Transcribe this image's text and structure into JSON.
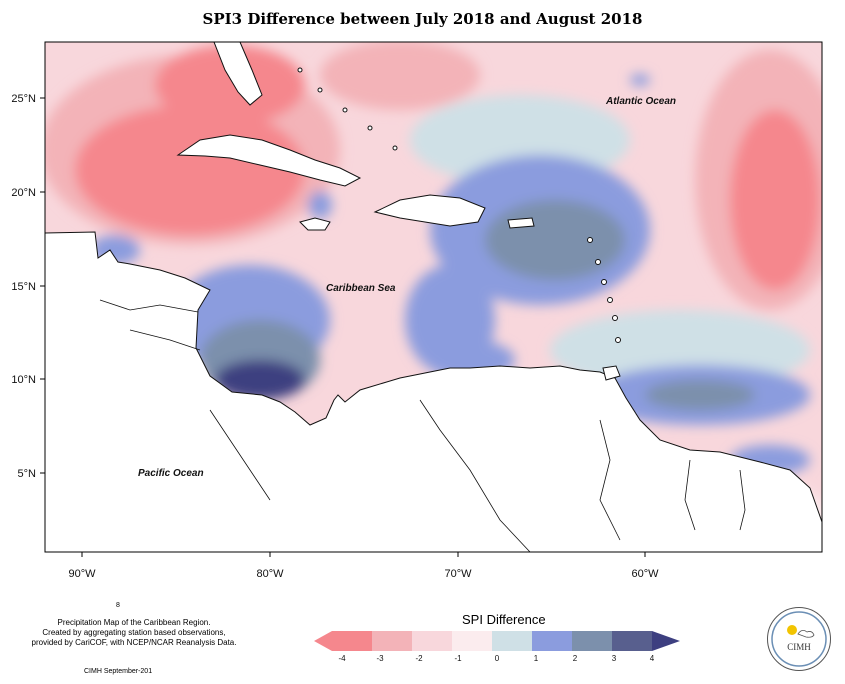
{
  "title": "SPI3 Difference between July 2018 and August 2018",
  "lat_labels": [
    "25°N",
    "20°N",
    "15°N",
    "10°N",
    "5°N"
  ],
  "lon_labels": [
    "90°W",
    "80°W",
    "70°W",
    "60°W"
  ],
  "ocean_labels": {
    "atlantic": "Atlantic Ocean",
    "caribbean": "Caribbean Sea",
    "pacific": "Pacific Ocean"
  },
  "footer": {
    "line1": "Precipitation Map of the Caribbean Region.",
    "line2": "Created by aggregating station based observations,",
    "line3": "provided by CariCOF, with NCEP/NCAR Reanalysis Data.",
    "date": "CIMH September-201",
    "digit": "8"
  },
  "legend": {
    "title": "SPI Difference",
    "ticks": [
      "-4",
      "-3",
      "-2",
      "-1",
      "0",
      "1",
      "2",
      "3",
      "4"
    ],
    "colors": [
      "#f5878d",
      "#f3b3b8",
      "#f8d7dc",
      "#fbecee",
      "#cfe0e6",
      "#8b9cde",
      "#7c90ac",
      "#585f8e",
      "#3d3f80"
    ]
  },
  "logo": {
    "text": "CIMH"
  },
  "palette": {
    "strong_dry": "#f5878d",
    "mod_dry": "#f3b3b8",
    "light_dry": "#f8d7dc",
    "very_light_dry": "#fbecee",
    "near_normal": "#cfe0e6",
    "light_wet": "#8b9cde",
    "mod_wet": "#7c90ac",
    "strong_wet": "#585f8e",
    "extreme_wet": "#3d3f80",
    "land_bg": "#ffffff"
  }
}
